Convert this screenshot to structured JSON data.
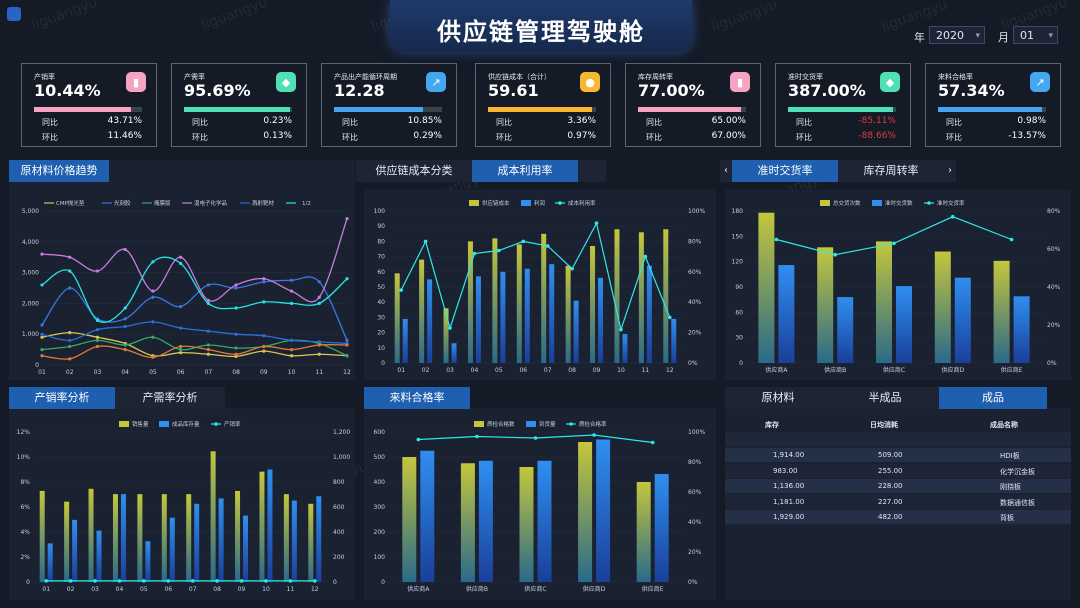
{
  "header": {
    "title": "供应链管理驾驶舱",
    "year_label": "年",
    "year_value": "2020",
    "month_label": "月",
    "month_value": "01"
  },
  "watermark": "liguangyu",
  "kpis": [
    {
      "label": "产销率",
      "value": "10.44%",
      "r1": "同比",
      "v1": "43.71%",
      "r2": "环比",
      "v2": "11.46%",
      "fill": 0.9,
      "color": "#f9a3c3",
      "icon": "bar-chart-icon",
      "neg": false
    },
    {
      "label": "产需率",
      "value": "95.69%",
      "r1": "同比",
      "v1": "0.23%",
      "r2": "环比",
      "v2": "0.13%",
      "fill": 0.98,
      "color": "#4fe0b6",
      "icon": "cube-icon",
      "neg": false
    },
    {
      "label": "产品出产能循环周期",
      "value": "12.28",
      "r1": "同比",
      "v1": "10.85%",
      "r2": "环比",
      "v2": "0.29%",
      "fill": 0.82,
      "color": "#46a7f1",
      "icon": "trend-chart-icon",
      "neg": false
    },
    {
      "label": "供应链成本（合计）",
      "value": "59.61",
      "r1": "同比",
      "v1": "3.36%",
      "r2": "环比",
      "v2": "0.97%",
      "fill": 0.96,
      "color": "#f5b82e",
      "icon": "coin-icon",
      "neg": false
    },
    {
      "label": "库存周转率",
      "value": "77.00%",
      "r1": "同比",
      "v1": "65.00%",
      "r2": "环比",
      "v2": "67.00%",
      "fill": 0.95,
      "color": "#f9a3c3",
      "icon": "bar-chart-icon",
      "neg": false
    },
    {
      "label": "准时交货率",
      "value": "387.00%",
      "r1": "同比",
      "v1": "-85.11%",
      "r2": "环比",
      "v2": "-88.66%",
      "fill": 0.97,
      "color": "#4fe0b6",
      "icon": "cube-icon",
      "neg": true
    },
    {
      "label": "来料合格率",
      "value": "57.34%",
      "r1": "同比",
      "v1": "0.98%",
      "r2": "环比",
      "v2": "-13.57%",
      "fill": 0.96,
      "color": "#46a7f1",
      "icon": "trend-chart-icon",
      "neg": false
    }
  ],
  "tabs": {
    "raw_trend": "原材料价格趋势",
    "cost_class": "供应链成本分类",
    "cost_util": "成本利用率",
    "on_time": "准时交货率",
    "turnover": "库存周转率",
    "sales_ratio": "产销率分析",
    "demand_ratio": "产需率分析",
    "incoming": "来料合格率",
    "raw": "原材料",
    "semi": "半成品",
    "finished": "成品"
  },
  "chart_data": [
    {
      "type": "line",
      "id": "raw-price",
      "categories": [
        "01",
        "02",
        "03",
        "04",
        "05",
        "06",
        "07",
        "08",
        "09",
        "10",
        "11",
        "12"
      ],
      "ylim": [
        0,
        5000
      ],
      "yticks": [
        "0",
        "1,000",
        "2,000",
        "3,000",
        "4,000",
        "5,000"
      ],
      "legend_page": "1/2",
      "series": [
        {
          "name": "CMP抛光垫",
          "color": "#d9c55a",
          "values": [
            900,
            1050,
            900,
            700,
            300,
            400,
            350,
            280,
            450,
            300,
            350,
            300
          ]
        },
        {
          "name": "光刻胶",
          "color": "#3a78e0",
          "values": [
            1300,
            2500,
            1500,
            1500,
            2200,
            1900,
            2600,
            2500,
            2700,
            2750,
            2700,
            800
          ]
        },
        {
          "name": "掩膜版",
          "color": "#36a96a",
          "values": [
            500,
            600,
            800,
            650,
            900,
            500,
            650,
            550,
            600,
            800,
            700,
            300
          ]
        },
        {
          "name": "湿电子化学品",
          "color": "#c77de0",
          "values": [
            3600,
            3500,
            3050,
            3750,
            2400,
            3500,
            2100,
            2600,
            2800,
            2400,
            2200,
            4750
          ]
        },
        {
          "name": "溅射靶材",
          "color": "#2a6ed8",
          "values": [
            1000,
            800,
            1150,
            1250,
            1400,
            1200,
            1100,
            1000,
            950,
            800,
            750,
            700
          ]
        },
        {
          "name": "",
          "color": "#27e3e3",
          "values": [
            2600,
            3050,
            1450,
            1850,
            3350,
            3300,
            2000,
            1850,
            2050,
            2000,
            2000,
            2800
          ]
        },
        {
          "name": "",
          "color": "#e07a3a",
          "values": [
            300,
            200,
            600,
            500,
            250,
            600,
            500,
            350,
            600,
            500,
            650,
            650
          ]
        }
      ]
    },
    {
      "type": "bar",
      "id": "cost-util",
      "categories": [
        "01",
        "02",
        "03",
        "04",
        "05",
        "06",
        "07",
        "08",
        "09",
        "10",
        "11",
        "12"
      ],
      "ylim": [
        0,
        100
      ],
      "yticks": [
        "0",
        "10",
        "20",
        "30",
        "40",
        "50",
        "60",
        "70",
        "80",
        "90",
        "100"
      ],
      "y2lim": [
        0,
        100
      ],
      "y2ticks": [
        "0%",
        "20%",
        "40%",
        "60%",
        "80%",
        "100%"
      ],
      "series": [
        {
          "name": "供应链成本",
          "color": "#c4c63c",
          "values": [
            59,
            68,
            36,
            80,
            82,
            78,
            85,
            64,
            77,
            88,
            86,
            88
          ]
        },
        {
          "name": "利润",
          "color": "#2f8ff0",
          "values": [
            29,
            55,
            13,
            57,
            60,
            62,
            65,
            41,
            56,
            19,
            64,
            29
          ]
        },
        {
          "name": "成本利用率",
          "color": "#2ee8e8",
          "line": true,
          "values": [
            48,
            80,
            23,
            72,
            74,
            80,
            77,
            62,
            92,
            22,
            70,
            30
          ]
        }
      ]
    },
    {
      "type": "bar",
      "id": "on-time",
      "categories": [
        "供应商A",
        "供应商B",
        "供应商C",
        "供应商D",
        "供应商E"
      ],
      "ylim": [
        0,
        180
      ],
      "yticks": [
        "0",
        "30",
        "60",
        "90",
        "120",
        "150",
        "180"
      ],
      "y2lim": [
        0,
        80
      ],
      "y2ticks": [
        "0%",
        "20%",
        "40%",
        "60%",
        "80%"
      ],
      "series": [
        {
          "name": "总交货次数",
          "color": "#c4c63c",
          "values": [
            178,
            137,
            144,
            132,
            121
          ]
        },
        {
          "name": "准时交货数",
          "color": "#2f8ff0",
          "values": [
            116,
            78,
            91,
            101,
            79
          ]
        },
        {
          "name": "准时交货率",
          "color": "#2ee8e8",
          "line": true,
          "values": [
            65,
            57,
            63,
            77,
            65
          ]
        }
      ]
    },
    {
      "type": "bar",
      "id": "sales-ratio",
      "categories": [
        "01",
        "02",
        "03",
        "04",
        "05",
        "06",
        "07",
        "08",
        "09",
        "10",
        "11",
        "12"
      ],
      "ylim": [
        0,
        12
      ],
      "yticks": [
        "0",
        "2%",
        "4%",
        "6%",
        "8%",
        "10%",
        "12%"
      ],
      "y2lim": [
        0,
        1400
      ],
      "y2ticks": [
        "0",
        "200",
        "400",
        "600",
        "800",
        "1,000",
        "1,200"
      ],
      "series": [
        {
          "name": "销售量",
          "color": "#c4c63c",
          "values": [
            850,
            750,
            870,
            820,
            820,
            820,
            820,
            1220,
            850,
            1030,
            820,
            730
          ]
        },
        {
          "name": "成品库存量",
          "color": "#2f8ff0",
          "values": [
            360,
            580,
            480,
            820,
            380,
            600,
            730,
            780,
            620,
            1050,
            760,
            800
          ]
        },
        {
          "name": "产销率",
          "color": "#2ee8e8",
          "line": true,
          "values": [
            10.5,
            10.4,
            10.4,
            10.4,
            10.4,
            10.4,
            10.4,
            10.4,
            10.4,
            10.4,
            10.4,
            10.3
          ]
        }
      ]
    },
    {
      "type": "bar",
      "id": "incoming",
      "categories": [
        "供应商A",
        "供应商B",
        "供应商C",
        "供应商D",
        "供应商E"
      ],
      "ylim": [
        0,
        600
      ],
      "yticks": [
        "0",
        "100",
        "200",
        "300",
        "400",
        "500",
        "600"
      ],
      "y2lim": [
        0,
        100
      ],
      "y2ticks": [
        "0%",
        "20%",
        "40%",
        "60%",
        "80%",
        "100%"
      ],
      "series": [
        {
          "name": "质检合格数",
          "color": "#c4c63c",
          "values": [
            500,
            475,
            460,
            560,
            400
          ]
        },
        {
          "name": "到货量",
          "color": "#2f8ff0",
          "values": [
            525,
            485,
            485,
            570,
            432
          ]
        },
        {
          "name": "质检合格率",
          "color": "#2ee8e8",
          "line": true,
          "values": [
            95,
            97,
            96,
            98,
            93
          ]
        }
      ]
    }
  ],
  "table": {
    "headers": [
      "库存",
      "日均消耗",
      "成品名称"
    ],
    "rows": [
      [
        "1,914.00",
        "509.00",
        "HDI板"
      ],
      [
        "983.00",
        "255.00",
        "化学沉金板"
      ],
      [
        "1,136.00",
        "228.00",
        "刚挠板"
      ],
      [
        "1,181.00",
        "227.00",
        "数据通信板"
      ],
      [
        "1,929.00",
        "482.00",
        "背板"
      ]
    ]
  },
  "colors": {
    "accent": "#1f5fb0",
    "bg": "#141a26",
    "panel": "#1a2130"
  }
}
